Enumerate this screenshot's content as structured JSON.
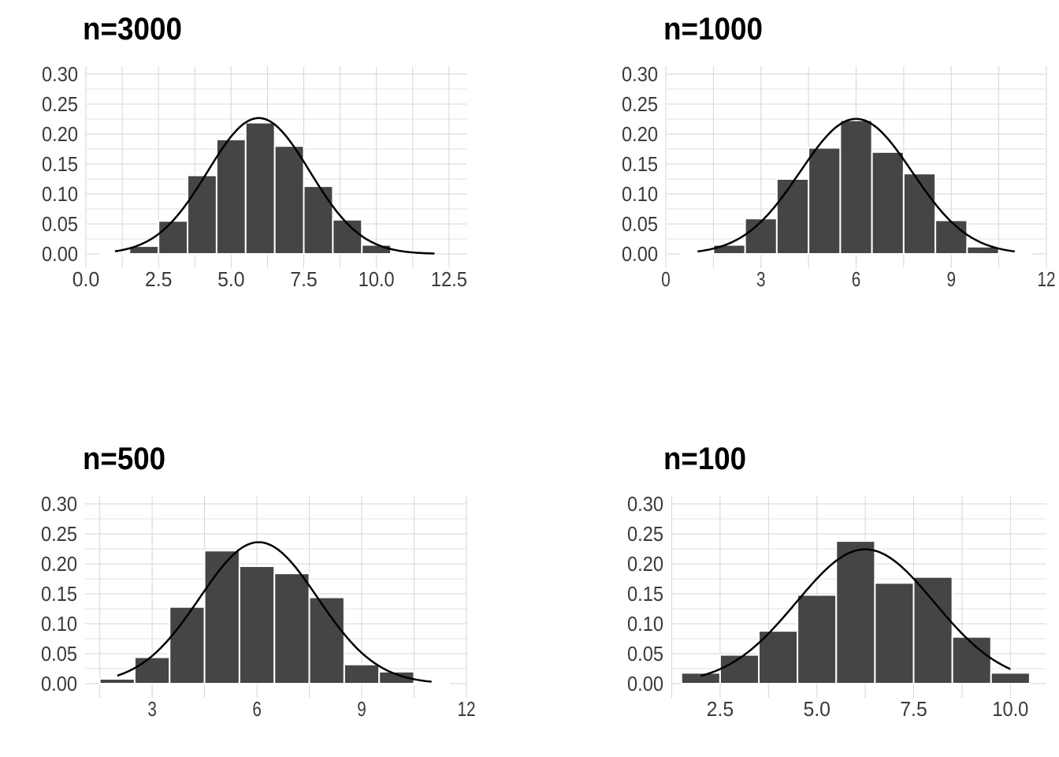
{
  "colors": {
    "bar": "#454545",
    "bar_edge": "#ffffff",
    "grid": "#d6d6d6",
    "curve": "#000000",
    "text": "#3a3a3a"
  },
  "chart_data": [
    {
      "type": "bar",
      "title": "n=3000",
      "xlim": [
        0,
        13.1
      ],
      "ylim": [
        0,
        0.31
      ],
      "grid": true,
      "x_ticks": [
        {
          "v": 0,
          "label": "0.0"
        },
        {
          "v": 2.5,
          "label": "2.5"
        },
        {
          "v": 5,
          "label": "5.0"
        },
        {
          "v": 7.5,
          "label": "7.5"
        },
        {
          "v": 10,
          "label": "10.0"
        },
        {
          "v": 12.5,
          "label": "12.5"
        }
      ],
      "y_ticks": [
        "0.00",
        "0.05",
        "0.10",
        "0.15",
        "0.20",
        "0.25",
        "0.30"
      ],
      "bins": [
        1,
        2,
        3,
        4,
        5,
        6,
        7,
        8,
        9,
        10,
        11
      ],
      "values": [
        0.0,
        0.013,
        0.055,
        0.131,
        0.191,
        0.219,
        0.18,
        0.113,
        0.057,
        0.015,
        0.0
      ],
      "curve": {
        "type": "normal-density",
        "mean": 5.95,
        "sd": 1.76,
        "from": 1,
        "to": 12
      }
    },
    {
      "type": "bar",
      "title": "n=1000",
      "xlim": [
        0,
        12.0
      ],
      "ylim": [
        0,
        0.31
      ],
      "grid": true,
      "x_ticks": [
        {
          "v": 0,
          "label": "0"
        },
        {
          "v": 3,
          "label": "3"
        },
        {
          "v": 6,
          "label": "6"
        },
        {
          "v": 9,
          "label": "9"
        },
        {
          "v": 12,
          "label": "12"
        }
      ],
      "y_ticks": [
        "0.00",
        "0.05",
        "0.10",
        "0.15",
        "0.20",
        "0.25",
        "0.30"
      ],
      "bins": [
        1,
        2,
        3,
        4,
        5,
        6,
        7,
        8,
        9,
        10,
        11
      ],
      "values": [
        0.0,
        0.015,
        0.059,
        0.125,
        0.177,
        0.223,
        0.17,
        0.134,
        0.056,
        0.012,
        0.0
      ],
      "curve": {
        "type": "normal-density",
        "mean": 6.0,
        "sd": 1.77,
        "from": 1,
        "to": 11
      }
    },
    {
      "type": "bar",
      "title": "n=500",
      "xlim": [
        1.08,
        12.0
      ],
      "ylim": [
        0,
        0.31
      ],
      "grid": true,
      "x_ticks": [
        {
          "v": 3,
          "label": "3"
        },
        {
          "v": 6,
          "label": "6"
        },
        {
          "v": 9,
          "label": "9"
        },
        {
          "v": 12,
          "label": "12"
        }
      ],
      "y_ticks": [
        "0.00",
        "0.05",
        "0.10",
        "0.15",
        "0.20",
        "0.25",
        "0.30"
      ],
      "bins": [
        2,
        3,
        4,
        5,
        6,
        7,
        8,
        9,
        10,
        11
      ],
      "values": [
        0.008,
        0.044,
        0.128,
        0.222,
        0.196,
        0.184,
        0.144,
        0.032,
        0.02,
        0.0
      ],
      "curve": {
        "type": "normal-density",
        "mean": 6.05,
        "sd": 1.69,
        "from": 2,
        "to": 11
      }
    },
    {
      "type": "bar",
      "title": "n=100",
      "xlim": [
        1.24,
        10.93
      ],
      "ylim": [
        0,
        0.31
      ],
      "grid": true,
      "x_ticks": [
        {
          "v": 2.5,
          "label": "2.5"
        },
        {
          "v": 5,
          "label": "5.0"
        },
        {
          "v": 7.5,
          "label": "7.5"
        },
        {
          "v": 10,
          "label": "10.0"
        }
      ],
      "y_ticks": [
        "0.00",
        "0.05",
        "0.10",
        "0.15",
        "0.20",
        "0.25",
        "0.30"
      ],
      "bins": [
        2,
        3,
        4,
        5,
        6,
        7,
        8,
        9,
        10
      ],
      "values": [
        0.018,
        0.048,
        0.088,
        0.148,
        0.238,
        0.168,
        0.178,
        0.078,
        0.018
      ],
      "curve": {
        "type": "normal-density",
        "mean": 6.25,
        "sd": 1.78,
        "from": 2,
        "to": 10
      }
    }
  ]
}
